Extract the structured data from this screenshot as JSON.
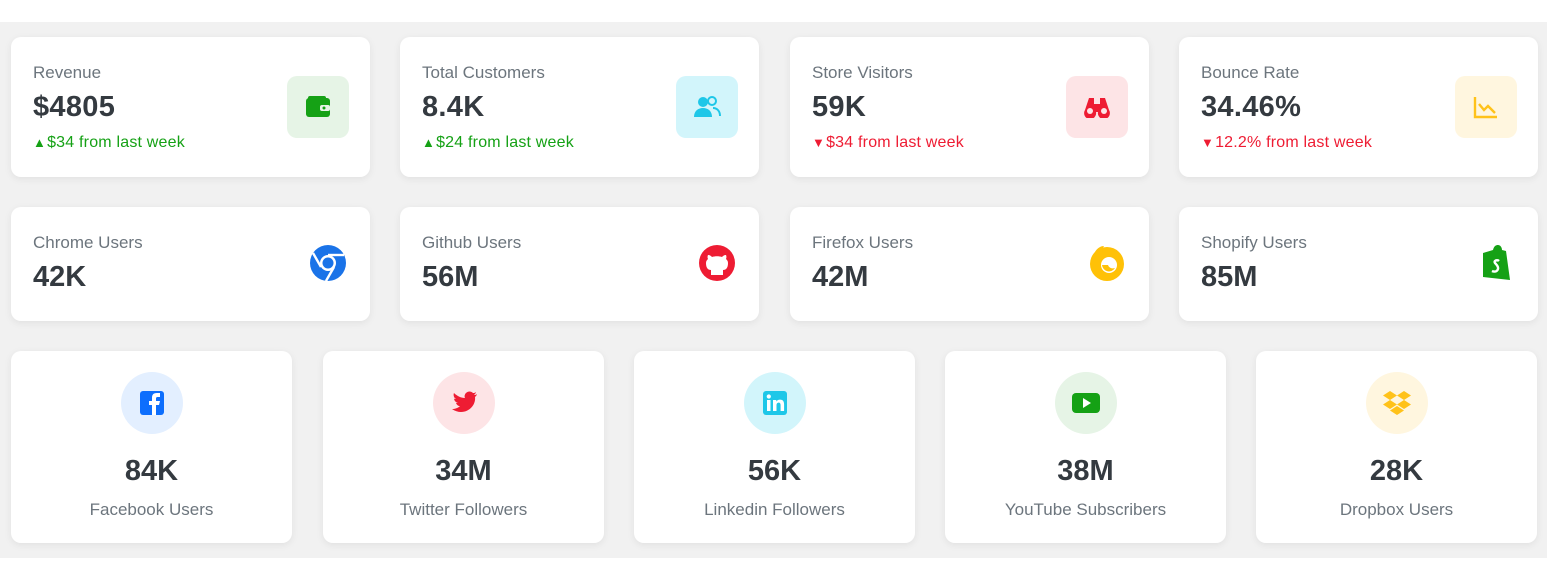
{
  "stats": [
    {
      "label": "Revenue",
      "value": "$4805",
      "trend_dir": "up",
      "trend_text": "$34 from last week",
      "icon": "wallet-icon",
      "icon_color": "#15a115",
      "icon_bg": "#e6f4e6"
    },
    {
      "label": "Total Customers",
      "value": "8.4K",
      "trend_dir": "up",
      "trend_text": "$24 from last week",
      "icon": "users-icon",
      "icon_color": "#1ec7e8",
      "icon_bg": "#d2f5fb"
    },
    {
      "label": "Store Visitors",
      "value": "59K",
      "trend_dir": "down",
      "trend_text": "$34 from last week",
      "icon": "binoculars-icon",
      "icon_color": "#ee1c33",
      "icon_bg": "#fde4e6"
    },
    {
      "label": "Bounce Rate",
      "value": "34.46%",
      "trend_dir": "down",
      "trend_text": "12.2% from last week",
      "icon": "chart-line-icon",
      "icon_color": "#ffc21a",
      "icon_bg": "#fff6df"
    }
  ],
  "users": [
    {
      "label": "Chrome Users",
      "value": "42K",
      "icon": "chrome-icon",
      "icon_color": "#1a73e8"
    },
    {
      "label": "Github Users",
      "value": "56M",
      "icon": "github-icon",
      "icon_color": "#ee1c33"
    },
    {
      "label": "Firefox Users",
      "value": "42M",
      "icon": "firefox-icon",
      "icon_color": "#ffc107"
    },
    {
      "label": "Shopify Users",
      "value": "85M",
      "icon": "shopify-icon",
      "icon_color": "#15a115"
    }
  ],
  "social": [
    {
      "label": "Facebook Users",
      "value": "84K",
      "icon": "facebook-icon",
      "icon_color": "#0d6efd",
      "icon_bg": "#e3efff"
    },
    {
      "label": "Twitter Followers",
      "value": "34M",
      "icon": "twitter-icon",
      "icon_color": "#ee1c33",
      "icon_bg": "#fde4e6"
    },
    {
      "label": "Linkedin Followers",
      "value": "56K",
      "icon": "linkedin-icon",
      "icon_color": "#1ec7e8",
      "icon_bg": "#d2f5fb"
    },
    {
      "label": "YouTube Subscribers",
      "value": "38M",
      "icon": "youtube-icon",
      "icon_color": "#15a115",
      "icon_bg": "#e6f4e6"
    },
    {
      "label": "Dropbox Users",
      "value": "28K",
      "icon": "dropbox-icon",
      "icon_color": "#ffc21a",
      "icon_bg": "#fff6df"
    }
  ]
}
